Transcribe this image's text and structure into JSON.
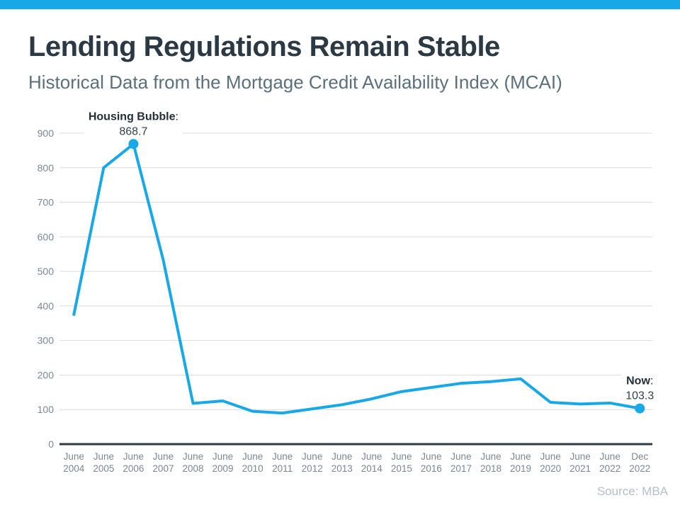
{
  "page": {
    "title": "Lending Regulations Remain Stable",
    "subtitle": "Historical Data from the Mortgage Credit Availability Index (MCAI)",
    "source": "Source: MBA",
    "colors": {
      "accent": "#18a8e8",
      "title_text": "#2b3945",
      "subtitle_text": "#5b707c",
      "axis_text": "#7b8894",
      "source_text": "#b3bfc8"
    }
  },
  "chart_data": {
    "type": "line",
    "categories": [
      "June 2004",
      "June 2005",
      "June 2006",
      "June 2007",
      "June 2008",
      "June 2009",
      "June 2010",
      "June 2011",
      "June 2012",
      "June 2013",
      "June 2014",
      "June 2015",
      "June 2016",
      "June 2017",
      "June 2018",
      "June 2019",
      "June 2020",
      "June 2021",
      "June 2022",
      "Dec 2022"
    ],
    "series": [
      {
        "name": "Mortgage Credit Availability Index",
        "values": [
          375,
          800,
          868.7,
          533,
          118,
          125,
          95,
          90,
          102,
          114,
          131,
          152,
          164,
          176,
          181,
          189,
          121,
          116,
          119,
          103.3
        ]
      }
    ],
    "ylim": [
      0,
      900
    ],
    "yticks": [
      0,
      100,
      200,
      300,
      400,
      500,
      600,
      700,
      800,
      900
    ],
    "grid": "horizontal",
    "legend": "none",
    "line_color": "#18a8e8",
    "grid_color": "#dcdcdc",
    "axis_color": "#2c3a45",
    "annotations": [
      {
        "label": "Housing Bubble",
        "suffix": ":",
        "value_text": "868.7",
        "category_index": 2
      },
      {
        "label": "Now",
        "suffix": ":",
        "value_text": "103.3",
        "category_index": 19
      }
    ]
  }
}
